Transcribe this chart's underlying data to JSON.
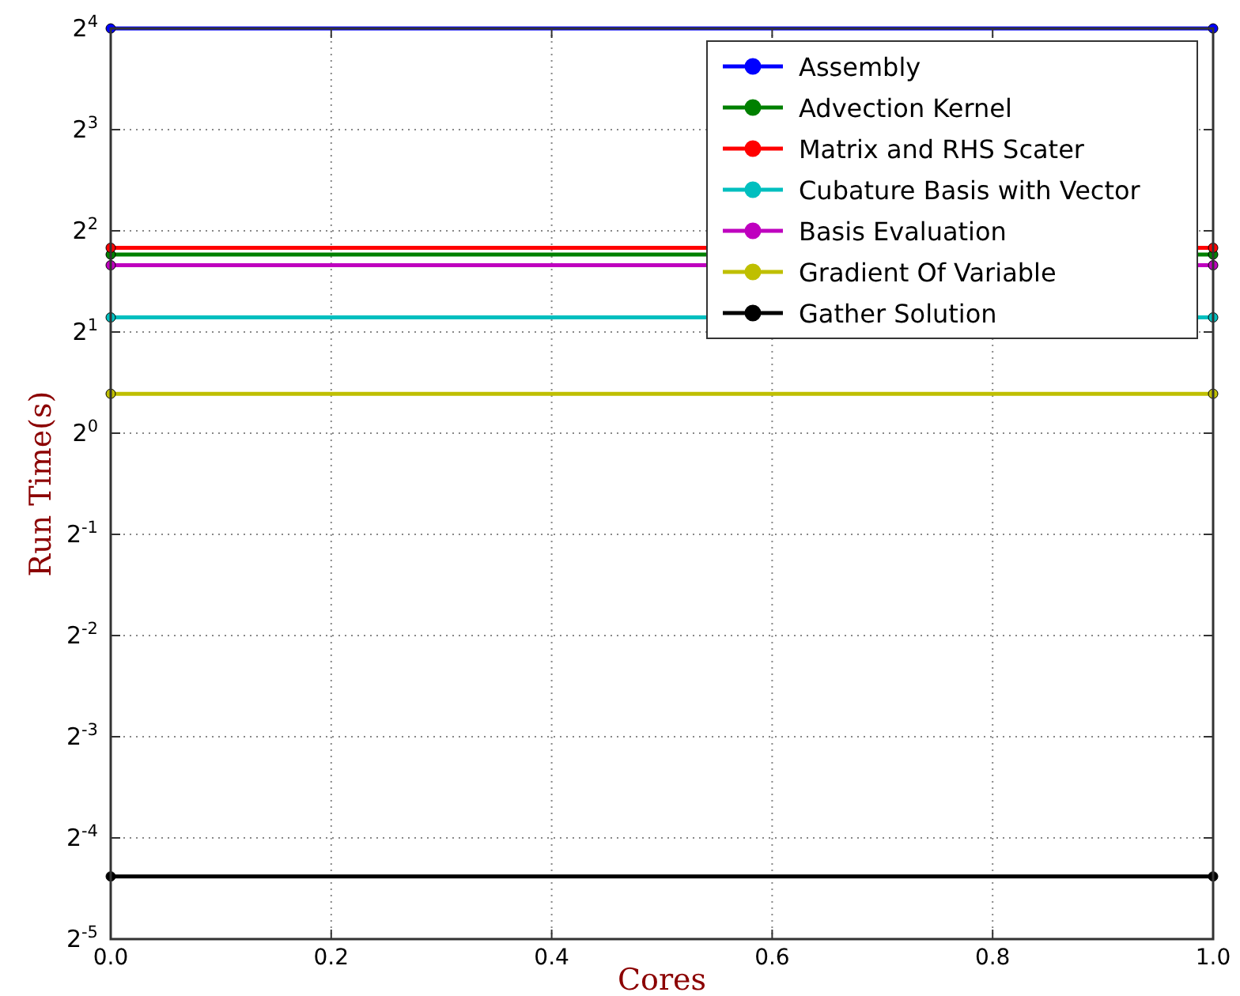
{
  "chart_data": {
    "type": "line",
    "xlabel": "Cores",
    "ylabel": "Run Time(s)",
    "x": [
      0,
      1
    ],
    "series": [
      {
        "name": "Assembly",
        "color": "#0000ff",
        "values": [
          16,
          16
        ]
      },
      {
        "name": "Advection Kernel",
        "color": "#008000",
        "values": [
          3.4,
          3.4
        ]
      },
      {
        "name": "Matrix and RHS Scater",
        "color": "#ff0000",
        "values": [
          3.56,
          3.56
        ]
      },
      {
        "name": "Cubature Basis with Vector",
        "color": "#00bfbf",
        "values": [
          2.21,
          2.21
        ]
      },
      {
        "name": "Basis Evaluation",
        "color": "#bf00bf",
        "values": [
          3.16,
          3.16
        ]
      },
      {
        "name": "Gradient Of Variable",
        "color": "#bfbf00",
        "values": [
          1.31,
          1.31
        ]
      },
      {
        "name": "Gather Solution",
        "color": "#000000",
        "values": [
          0.048,
          0.048
        ]
      }
    ],
    "xlim": [
      0,
      1
    ],
    "xticks": [
      {
        "value": 0,
        "label": "0.0"
      },
      {
        "value": 0.2,
        "label": "0.2"
      },
      {
        "value": 0.4,
        "label": "0.4"
      },
      {
        "value": 0.6,
        "label": "0.6"
      },
      {
        "value": 0.8,
        "label": "0.8"
      },
      {
        "value": 1,
        "label": "1.0"
      }
    ],
    "ylim": [
      0.03125,
      16
    ],
    "yticks": [
      {
        "value": 0.03125,
        "label": "2$^{-5}$"
      },
      {
        "value": 0.0625,
        "label": "2$^{-4}$"
      },
      {
        "value": 0.125,
        "label": "2$^{-3}$"
      },
      {
        "value": 0.25,
        "label": "2$^{-2}$"
      },
      {
        "value": 0.5,
        "label": "2$^{-1}$"
      },
      {
        "value": 1,
        "label": "2$^{0}$"
      },
      {
        "value": 2,
        "label": "2$^{1}$"
      },
      {
        "value": 4,
        "label": "2$^{2}$"
      },
      {
        "value": 8,
        "label": "2$^{3}$"
      },
      {
        "value": 16,
        "label": "2$^{4}$"
      }
    ],
    "log": true,
    "grid": true,
    "legend": "top right",
    "marker": "circle",
    "line_style": "solid"
  }
}
